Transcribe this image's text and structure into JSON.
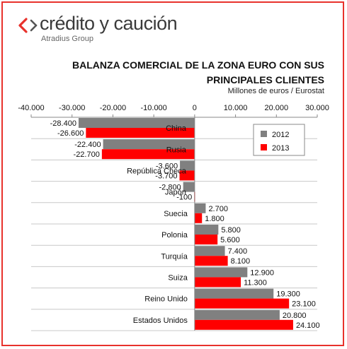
{
  "brand": {
    "name": "crédito y caución",
    "sub": "Atradius Group",
    "colors": {
      "mark_primary": "#e8322c",
      "mark_secondary": "#555555",
      "text": "#3a3a3a"
    }
  },
  "chart_data": {
    "type": "bar",
    "orientation": "horizontal",
    "title_lines": [
      "BALANZA COMERCIAL DE LA ZONA EURO CON SUS",
      "PRINCIPALES CLIENTES"
    ],
    "subtitle": "Millones de euros / Eurostat",
    "xlim": [
      -40000,
      30000
    ],
    "x_ticks": [
      -40000,
      -30000,
      -20000,
      -10000,
      0,
      10000,
      20000,
      30000
    ],
    "x_tick_labels": [
      "-40.000",
      "-30.000",
      "-20.000",
      "-10.000",
      "0",
      "10.000",
      "20.000",
      "30.000"
    ],
    "x_axis_position": "top",
    "grid": {
      "horizontal": true,
      "vertical": false
    },
    "legend": {
      "position": "top-right"
    },
    "categories": [
      "China",
      "Rusia",
      "República Checa",
      "Japón",
      "Suecia",
      "Polonia",
      "Turquía",
      "Suiza",
      "Reino Unido",
      "Estados Unidos"
    ],
    "series": [
      {
        "name": "2012",
        "color": "#808080",
        "values": [
          -28400,
          -22400,
          -3600,
          -2800,
          2700,
          5800,
          7400,
          12900,
          19300,
          20800
        ],
        "labels": [
          "-28.400",
          "-22.400",
          "-3.600",
          "-2.800",
          "2.700",
          "5.800",
          "7.400",
          "12.900",
          "19.300",
          "20.800"
        ]
      },
      {
        "name": "2013",
        "color": "#ff0000",
        "values": [
          -26600,
          -22700,
          -3700,
          -100,
          1800,
          5600,
          8100,
          11300,
          23100,
          24100
        ],
        "labels": [
          "-26.600",
          "-22.700",
          "-3.700",
          "-100",
          "1.800",
          "5.600",
          "8.100",
          "11.300",
          "23.100",
          "24.100"
        ]
      }
    ]
  }
}
